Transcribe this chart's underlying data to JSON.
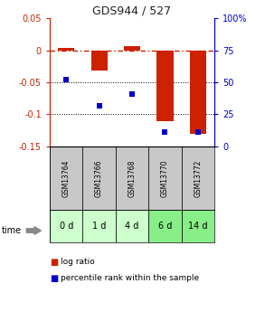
{
  "title": "GDS944 / 527",
  "samples": [
    "GSM13764",
    "GSM13766",
    "GSM13768",
    "GSM13770",
    "GSM13772"
  ],
  "time_labels": [
    "0 d",
    "1 d",
    "4 d",
    "6 d",
    "14 d"
  ],
  "log_ratio": [
    0.003,
    -0.032,
    0.007,
    -0.11,
    -0.13
  ],
  "percentile_rank": [
    52,
    32,
    41,
    11,
    11
  ],
  "ylim_left": [
    -0.15,
    0.05
  ],
  "ylim_right": [
    0,
    100
  ],
  "yticks_left": [
    0.05,
    0,
    -0.05,
    -0.1,
    -0.15
  ],
  "ytick_labels_left": [
    "0.05",
    "0",
    "-0.05",
    "-0.1",
    "-0.15"
  ],
  "yticks_right": [
    100,
    75,
    50,
    25,
    0
  ],
  "ytick_labels_right": [
    "100%",
    "75",
    "50",
    "25",
    "0"
  ],
  "bar_color": "#cc2200",
  "scatter_color": "#0000cc",
  "zero_line_color": "#cc2200",
  "grid_line_color": "#000000",
  "sample_box_color": "#c8c8c8",
  "time_box_colors": [
    "#ccffcc",
    "#ccffcc",
    "#ccffcc",
    "#88ee88",
    "#88ee88"
  ],
  "background_color": "#ffffff",
  "title_color": "#222222",
  "left_axis_color": "#cc2200",
  "right_axis_color": "#0000cc"
}
